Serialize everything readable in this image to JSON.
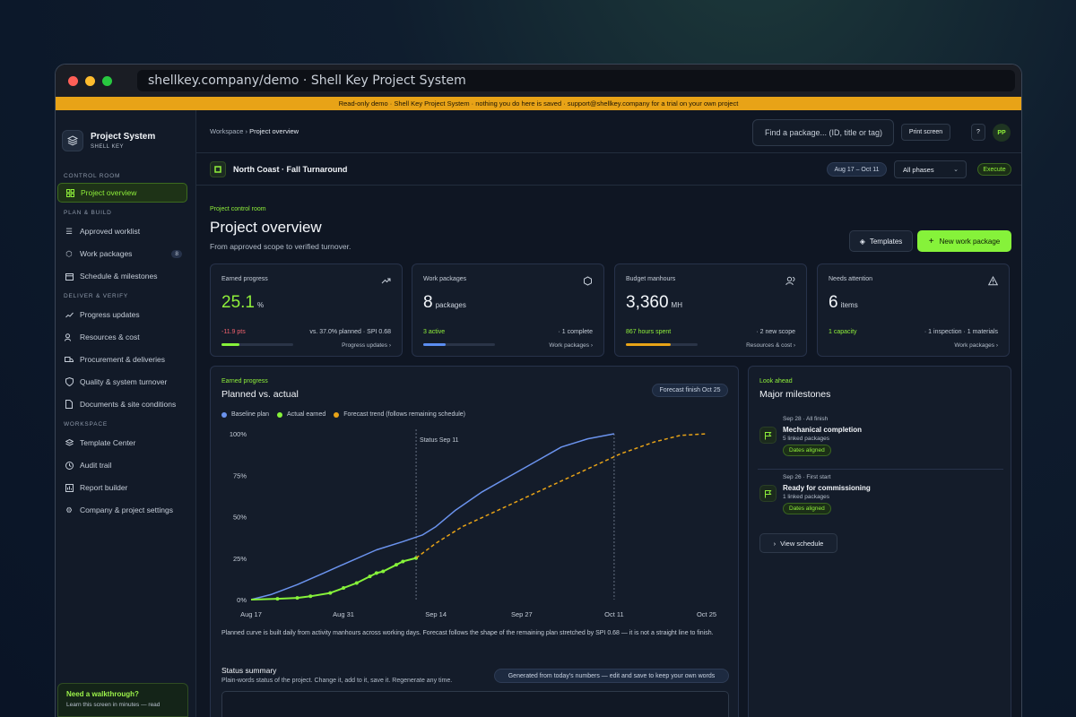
{
  "browser": {
    "url": "shellkey.company/demo · Shell Key Project System"
  },
  "banner": {
    "text": "Read-only demo · Shell Key Project System · nothing you do here is saved · support@shellkey.company for a trial on your own project"
  },
  "brand": {
    "name": "Project System",
    "sub": "SHELL KEY"
  },
  "sidebar": {
    "sections": [
      {
        "label": "CONTROL ROOM"
      },
      {
        "label": "PLAN & BUILD"
      },
      {
        "label": "DELIVER & VERIFY"
      },
      {
        "label": "WORKSPACE"
      }
    ],
    "items": [
      {
        "label": "Project overview",
        "icon": "grid-icon"
      },
      {
        "label": "Approved worklist",
        "icon": "list-icon"
      },
      {
        "label": "Work packages",
        "icon": "hexagon-icon",
        "count": "8"
      },
      {
        "label": "Schedule & milestones",
        "icon": "calendar-icon"
      },
      {
        "label": "Progress updates",
        "icon": "trend-icon"
      },
      {
        "label": "Resources & cost",
        "icon": "users-icon"
      },
      {
        "label": "Procurement & deliveries",
        "icon": "truck-icon"
      },
      {
        "label": "Quality & system turnover",
        "icon": "shield-icon"
      },
      {
        "label": "Documents & site conditions",
        "icon": "document-icon"
      },
      {
        "label": "Template Center",
        "icon": "layers-icon"
      },
      {
        "label": "Audit trail",
        "icon": "clock-icon"
      },
      {
        "label": "Report builder",
        "icon": "report-icon"
      },
      {
        "label": "Company & project settings",
        "icon": "gear-icon"
      }
    ],
    "walkthrough": {
      "title": "Need a walkthrough?",
      "sub": "Learn this screen in minutes — read"
    }
  },
  "topbar": {
    "breadcrumb_root": "Workspace",
    "breadcrumb_sep": " › ",
    "breadcrumb_current": "Project overview",
    "search_placeholder": "Find a package... (ID, title or tag)",
    "print_label": "Print screen",
    "help_label": "?",
    "avatar_initials": "PP"
  },
  "project": {
    "name": "North Coast · Fall Turnaround",
    "dates": "Aug 17 – Oct 11",
    "phase": "All phases",
    "mode": "Execute"
  },
  "page": {
    "kicker": "Project control room",
    "title": "Project overview",
    "subtitle": "From approved scope to verified turnover.",
    "templates_label": "Templates",
    "new_label": "New work package"
  },
  "cards": [
    {
      "title": "Earned progress",
      "value": "25.1",
      "unit": "%",
      "left": "-11.9 pts",
      "right": "vs. 37.0% planned · SPI 0.68",
      "link": "Progress updates",
      "progress": 0.251,
      "bar_color": "#86f23a",
      "left_color": "#f0616d"
    },
    {
      "title": "Work packages",
      "value": "8",
      "unit": "packages",
      "left": "3 active",
      "right": "· 1 complete",
      "link": "Work packages",
      "progress": 0.31,
      "bar_color": "#5b8df0",
      "left_color": "#8ff03a"
    },
    {
      "title": "Budget manhours",
      "value": "3,360",
      "unit": "MH",
      "left": "867 hours spent",
      "right": "· 2 new scope",
      "link": "Resources & cost",
      "progress": 0.62,
      "bar_color": "#e8a317",
      "left_color": "#8ff03a"
    },
    {
      "title": "Needs attention",
      "value": "6",
      "unit": "items",
      "left": "1 capacity",
      "right": "· 1 inspection · 1 materials",
      "link": "Work packages",
      "progress": 0,
      "bar_color": "#86f23a",
      "left_color": "#8ff03a"
    }
  ],
  "chart_card": {
    "kicker": "Earned progress",
    "title": "Planned vs. actual",
    "badge": "Forecast finish Oct 25",
    "note": "Planned curve is built daily from activity manhours across working days. Forecast follows the shape of the remaining plan stretched by SPI 0.68 — it is not a straight line to finish.",
    "status_title": "Status summary",
    "status_sub": "Plain-words status of the project. Change it, add to it, save it. Regenerate any time.",
    "status_badge": "Generated from today's numbers — edit and save to keep your own words"
  },
  "chart_data": {
    "type": "line",
    "title": "Planned vs. actual",
    "ylim": [
      0,
      100
    ],
    "yticks": [
      "0%",
      "25%",
      "50%",
      "75%",
      "100%"
    ],
    "xticks": [
      "Aug 17",
      "Aug 31",
      "Sep 14",
      "Sep 27",
      "Oct 11",
      "Oct 25"
    ],
    "xtick_days": [
      0,
      14,
      28,
      41,
      55,
      69
    ],
    "status_label": "Status Sep 11",
    "status_day": 25,
    "grid": false,
    "legend_position": "top-left",
    "series": [
      {
        "name": "Baseline plan",
        "color": "#6b93ee",
        "style": "solid",
        "x": [
          0,
          3,
          7,
          11,
          15,
          19,
          23,
          26,
          28,
          31,
          35,
          39,
          43,
          47,
          51,
          55
        ],
        "y": [
          0,
          3,
          9,
          16,
          23,
          30,
          35,
          39,
          44,
          54,
          65,
          74,
          83,
          92,
          97,
          100
        ]
      },
      {
        "name": "Actual earned",
        "color": "#86f23a",
        "style": "solid-markers",
        "x": [
          0,
          4,
          7,
          9,
          12,
          14,
          16,
          18,
          19,
          20,
          22,
          23,
          25
        ],
        "y": [
          0,
          0.5,
          1,
          2,
          4,
          7,
          10,
          14,
          16,
          17,
          21,
          23,
          25.1
        ]
      },
      {
        "name": "Forecast trend (follows remaining schedule)",
        "color": "#e8a317",
        "style": "dashed",
        "x": [
          25,
          28,
          32,
          38,
          44,
          50,
          56,
          61,
          65,
          69
        ],
        "y": [
          25.1,
          34,
          44,
          55,
          66,
          77,
          88,
          95,
          99,
          100
        ]
      }
    ]
  },
  "milestones": {
    "kicker": "Look ahead",
    "title": "Major milestones",
    "items": [
      {
        "date": "Sep 28 · All finish",
        "title": "Mechanical completion",
        "sub": "5 linked packages",
        "badge": "Dates aligned"
      },
      {
        "date": "Sep 26 · First start",
        "title": "Ready for commissioning",
        "sub": "1 linked packages",
        "badge": "Dates aligned"
      }
    ],
    "view_label": "View schedule"
  }
}
